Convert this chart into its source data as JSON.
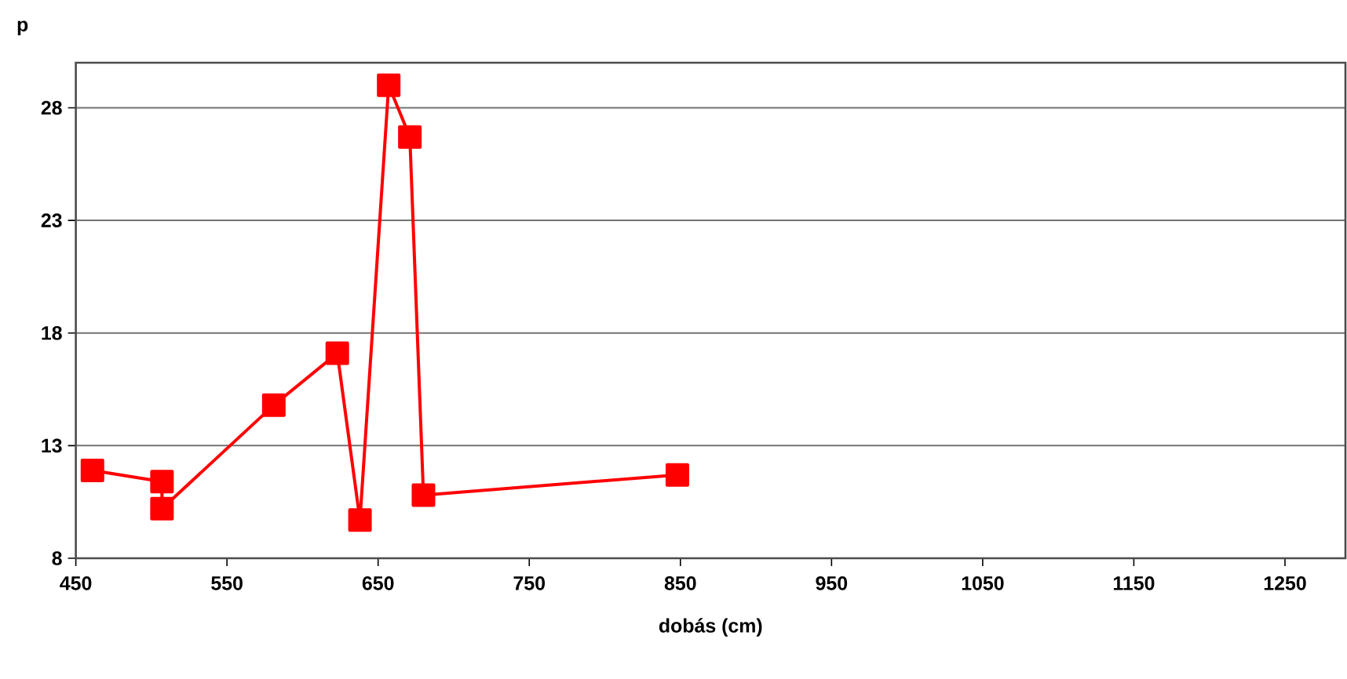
{
  "chart_data": {
    "type": "line",
    "xlabel": "dobás (cm)",
    "ylabel": "p",
    "x": [
      461,
      507,
      507,
      581,
      623,
      638,
      657,
      671,
      680,
      848
    ],
    "series": [
      {
        "color": "#ff0000",
        "values": [
          11.9,
          11.4,
          10.2,
          14.8,
          17.1,
          9.7,
          29.0,
          26.7,
          10.8,
          11.7
        ]
      }
    ],
    "xlim": [
      450,
      1290
    ],
    "xticks": [
      450,
      550,
      650,
      750,
      850,
      950,
      1050,
      1150,
      1250
    ],
    "ylim": [
      8,
      30
    ],
    "yticks": [
      8,
      13,
      18,
      23,
      28
    ],
    "grid": "y",
    "marker": "square",
    "line_style": "solid"
  }
}
